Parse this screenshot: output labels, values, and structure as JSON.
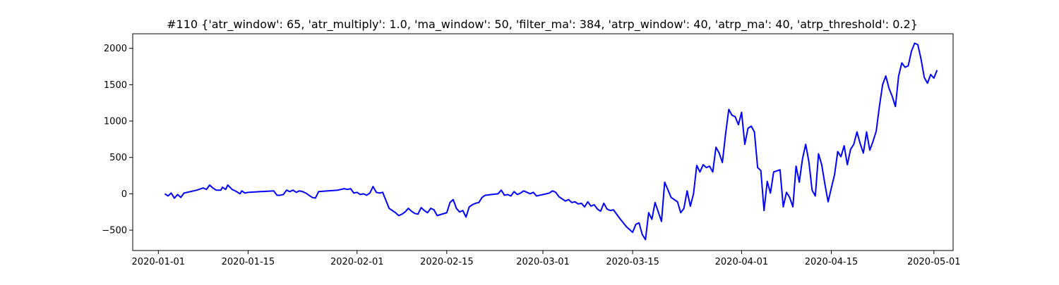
{
  "chart_data": {
    "type": "line",
    "title": "#110 {'atr_window': 65, 'atr_multiply': 1.0, 'ma_window': 50, 'filter_ma': 384, 'atrp_window': 40, 'atrp_ma': 40, 'atrp_threshold': 0.2}",
    "xlabel": "",
    "ylabel": "",
    "xlim": [
      "2019-12-28",
      "2020-05-04"
    ],
    "ylim": [
      -780,
      2200
    ],
    "x_ticks": [
      "2020-01-01",
      "2020-01-15",
      "2020-02-01",
      "2020-02-15",
      "2020-03-01",
      "2020-03-15",
      "2020-04-01",
      "2020-04-15",
      "2020-05-01"
    ],
    "y_ticks": [
      -500,
      0,
      500,
      1000,
      1500,
      2000
    ],
    "grid": false,
    "line_color": "#0000ff",
    "series": [
      {
        "points": [
          [
            "2020-01-02",
            0
          ],
          [
            "2020-01-02 12:00",
            -30
          ],
          [
            "2020-01-03",
            10
          ],
          [
            "2020-01-03 12:00",
            -60
          ],
          [
            "2020-01-04",
            -10
          ],
          [
            "2020-01-04 12:00",
            -50
          ],
          [
            "2020-01-05",
            10
          ],
          [
            "2020-01-07",
            50
          ],
          [
            "2020-01-08",
            80
          ],
          [
            "2020-01-08 12:00",
            60
          ],
          [
            "2020-01-09",
            120
          ],
          [
            "2020-01-09 12:00",
            80
          ],
          [
            "2020-01-10",
            50
          ],
          [
            "2020-01-10 18:00",
            50
          ],
          [
            "2020-01-11",
            90
          ],
          [
            "2020-01-11 12:00",
            60
          ],
          [
            "2020-01-11 20:00",
            120
          ],
          [
            "2020-01-12 12:00",
            60
          ],
          [
            "2020-01-13",
            40
          ],
          [
            "2020-01-13 18:00",
            0
          ],
          [
            "2020-01-14",
            40
          ],
          [
            "2020-01-14 12:00",
            10
          ],
          [
            "2020-01-15",
            20
          ],
          [
            "2020-01-17",
            30
          ],
          [
            "2020-01-19",
            40
          ],
          [
            "2020-01-19 12:00",
            -20
          ],
          [
            "2020-01-20",
            -20
          ],
          [
            "2020-01-20 12:00",
            -10
          ],
          [
            "2020-01-21",
            50
          ],
          [
            "2020-01-21 12:00",
            30
          ],
          [
            "2020-01-22",
            50
          ],
          [
            "2020-01-22 12:00",
            20
          ],
          [
            "2020-01-23",
            40
          ],
          [
            "2020-01-23 12:00",
            30
          ],
          [
            "2020-01-24",
            10
          ],
          [
            "2020-01-25",
            -50
          ],
          [
            "2020-01-25 12:00",
            -60
          ],
          [
            "2020-01-26",
            30
          ],
          [
            "2020-01-29",
            50
          ],
          [
            "2020-01-30",
            70
          ],
          [
            "2020-01-30 12:00",
            60
          ],
          [
            "2020-01-31",
            70
          ],
          [
            "2020-01-31 12:00",
            10
          ],
          [
            "2020-02-01",
            20
          ],
          [
            "2020-02-01 12:00",
            -10
          ],
          [
            "2020-02-02",
            0
          ],
          [
            "2020-02-02 12:00",
            -20
          ],
          [
            "2020-02-03",
            10
          ],
          [
            "2020-02-03 12:00",
            100
          ],
          [
            "2020-02-04",
            20
          ],
          [
            "2020-02-04 12:00",
            10
          ],
          [
            "2020-02-05",
            20
          ],
          [
            "2020-02-06",
            -200
          ],
          [
            "2020-02-07",
            -260
          ],
          [
            "2020-02-07 12:00",
            -300
          ],
          [
            "2020-02-08",
            -280
          ],
          [
            "2020-02-08 12:00",
            -250
          ],
          [
            "2020-02-09",
            -200
          ],
          [
            "2020-02-09 12:00",
            -240
          ],
          [
            "2020-02-10",
            -270
          ],
          [
            "2020-02-10 12:00",
            -280
          ],
          [
            "2020-02-11",
            -190
          ],
          [
            "2020-02-11 12:00",
            -230
          ],
          [
            "2020-02-12",
            -260
          ],
          [
            "2020-02-12 12:00",
            -200
          ],
          [
            "2020-02-13",
            -220
          ],
          [
            "2020-02-13 12:00",
            -300
          ],
          [
            "2020-02-15",
            -260
          ],
          [
            "2020-02-15 12:00",
            -120
          ],
          [
            "2020-02-16",
            -80
          ],
          [
            "2020-02-16 12:00",
            -200
          ],
          [
            "2020-02-17",
            -250
          ],
          [
            "2020-02-17 12:00",
            -230
          ],
          [
            "2020-02-18",
            -320
          ],
          [
            "2020-02-18 12:00",
            -180
          ],
          [
            "2020-02-19",
            -150
          ],
          [
            "2020-02-19 12:00",
            -130
          ],
          [
            "2020-02-20",
            -120
          ],
          [
            "2020-02-20 12:00",
            -50
          ],
          [
            "2020-02-21",
            -20
          ],
          [
            "2020-02-22",
            -10
          ],
          [
            "2020-02-23",
            0
          ],
          [
            "2020-02-23 12:00",
            50
          ],
          [
            "2020-02-24",
            -20
          ],
          [
            "2020-02-24 12:00",
            -10
          ],
          [
            "2020-02-25",
            -30
          ],
          [
            "2020-02-25 12:00",
            30
          ],
          [
            "2020-02-26",
            -10
          ],
          [
            "2020-02-26 12:00",
            10
          ],
          [
            "2020-02-27",
            40
          ],
          [
            "2020-02-27 12:00",
            20
          ],
          [
            "2020-02-28",
            0
          ],
          [
            "2020-02-28 12:00",
            20
          ],
          [
            "2020-02-29",
            -30
          ],
          [
            "2020-03-01",
            -10
          ],
          [
            "2020-03-02",
            10
          ],
          [
            "2020-03-02 12:00",
            40
          ],
          [
            "2020-03-03",
            20
          ],
          [
            "2020-03-03 12:00",
            -40
          ],
          [
            "2020-03-04",
            -70
          ],
          [
            "2020-03-04 12:00",
            -100
          ],
          [
            "2020-03-05",
            -80
          ],
          [
            "2020-03-05 12:00",
            -120
          ],
          [
            "2020-03-06",
            -110
          ],
          [
            "2020-03-06 12:00",
            -140
          ],
          [
            "2020-03-07",
            -130
          ],
          [
            "2020-03-07 12:00",
            -180
          ],
          [
            "2020-03-08",
            -110
          ],
          [
            "2020-03-08 12:00",
            -170
          ],
          [
            "2020-03-09",
            -150
          ],
          [
            "2020-03-09 12:00",
            -210
          ],
          [
            "2020-03-10",
            -240
          ],
          [
            "2020-03-10 12:00",
            -130
          ],
          [
            "2020-03-11",
            -210
          ],
          [
            "2020-03-11 12:00",
            -230
          ],
          [
            "2020-03-12",
            -220
          ],
          [
            "2020-03-13",
            -340
          ],
          [
            "2020-03-14",
            -450
          ],
          [
            "2020-03-14 12:00",
            -490
          ],
          [
            "2020-03-15",
            -530
          ],
          [
            "2020-03-15 12:00",
            -420
          ],
          [
            "2020-03-16",
            -400
          ],
          [
            "2020-03-16 12:00",
            -560
          ],
          [
            "2020-03-17",
            -630
          ],
          [
            "2020-03-17 12:00",
            -260
          ],
          [
            "2020-03-18",
            -350
          ],
          [
            "2020-03-18 12:00",
            -120
          ],
          [
            "2020-03-19",
            -250
          ],
          [
            "2020-03-19 12:00",
            -380
          ],
          [
            "2020-03-20",
            160
          ],
          [
            "2020-03-21",
            -50
          ],
          [
            "2020-03-22",
            -110
          ],
          [
            "2020-03-22 12:00",
            -260
          ],
          [
            "2020-03-23",
            -200
          ],
          [
            "2020-03-23 12:00",
            40
          ],
          [
            "2020-03-24",
            -170
          ],
          [
            "2020-03-24 12:00",
            0
          ],
          [
            "2020-03-25",
            390
          ],
          [
            "2020-03-25 12:00",
            300
          ],
          [
            "2020-03-26",
            400
          ],
          [
            "2020-03-26 12:00",
            360
          ],
          [
            "2020-03-27",
            380
          ],
          [
            "2020-03-27 12:00",
            300
          ],
          [
            "2020-03-28",
            640
          ],
          [
            "2020-03-28 12:00",
            560
          ],
          [
            "2020-03-29",
            430
          ],
          [
            "2020-03-29 12:00",
            820
          ],
          [
            "2020-03-30",
            1160
          ],
          [
            "2020-03-30 12:00",
            1080
          ],
          [
            "2020-03-31",
            1060
          ],
          [
            "2020-03-31 12:00",
            950
          ],
          [
            "2020-04-01",
            1120
          ],
          [
            "2020-04-01 12:00",
            680
          ],
          [
            "2020-04-02",
            900
          ],
          [
            "2020-04-02 12:00",
            930
          ],
          [
            "2020-04-03",
            850
          ],
          [
            "2020-04-03 12:00",
            360
          ],
          [
            "2020-04-04",
            320
          ],
          [
            "2020-04-04 12:00",
            -230
          ],
          [
            "2020-04-05",
            170
          ],
          [
            "2020-04-05 12:00",
            10
          ],
          [
            "2020-04-06",
            300
          ],
          [
            "2020-04-07",
            330
          ],
          [
            "2020-04-07 12:00",
            -180
          ],
          [
            "2020-04-08",
            20
          ],
          [
            "2020-04-08 12:00",
            -50
          ],
          [
            "2020-04-09",
            -180
          ],
          [
            "2020-04-09 12:00",
            380
          ],
          [
            "2020-04-10",
            160
          ],
          [
            "2020-04-10 12:00",
            480
          ],
          [
            "2020-04-11",
            680
          ],
          [
            "2020-04-11 12:00",
            440
          ],
          [
            "2020-04-12",
            50
          ],
          [
            "2020-04-12 12:00",
            -30
          ],
          [
            "2020-04-13",
            550
          ],
          [
            "2020-04-13 12:00",
            400
          ],
          [
            "2020-04-14",
            130
          ],
          [
            "2020-04-14 12:00",
            -110
          ],
          [
            "2020-04-15",
            80
          ],
          [
            "2020-04-15 12:00",
            260
          ],
          [
            "2020-04-16",
            580
          ],
          [
            "2020-04-16 12:00",
            510
          ],
          [
            "2020-04-17",
            660
          ],
          [
            "2020-04-17 12:00",
            400
          ],
          [
            "2020-04-18",
            610
          ],
          [
            "2020-04-18 12:00",
            680
          ],
          [
            "2020-04-19",
            850
          ],
          [
            "2020-04-19 12:00",
            690
          ],
          [
            "2020-04-20",
            560
          ],
          [
            "2020-04-20 12:00",
            850
          ],
          [
            "2020-04-21",
            600
          ],
          [
            "2020-04-21 12:00",
            720
          ],
          [
            "2020-04-22",
            860
          ],
          [
            "2020-04-22 12:00",
            1200
          ],
          [
            "2020-04-23",
            1500
          ],
          [
            "2020-04-23 12:00",
            1620
          ],
          [
            "2020-04-24",
            1450
          ],
          [
            "2020-04-24 12:00",
            1340
          ],
          [
            "2020-04-25",
            1200
          ],
          [
            "2020-04-25 12:00",
            1620
          ],
          [
            "2020-04-26",
            1800
          ],
          [
            "2020-04-26 12:00",
            1740
          ],
          [
            "2020-04-27",
            1760
          ],
          [
            "2020-04-27 12:00",
            1960
          ],
          [
            "2020-04-28",
            2070
          ],
          [
            "2020-04-28 12:00",
            2050
          ],
          [
            "2020-04-29",
            1850
          ],
          [
            "2020-04-29 12:00",
            1600
          ],
          [
            "2020-04-30",
            1520
          ],
          [
            "2020-04-30 12:00",
            1640
          ],
          [
            "2020-05-01",
            1590
          ],
          [
            "2020-05-01 12:00",
            1700
          ]
        ]
      }
    ]
  }
}
